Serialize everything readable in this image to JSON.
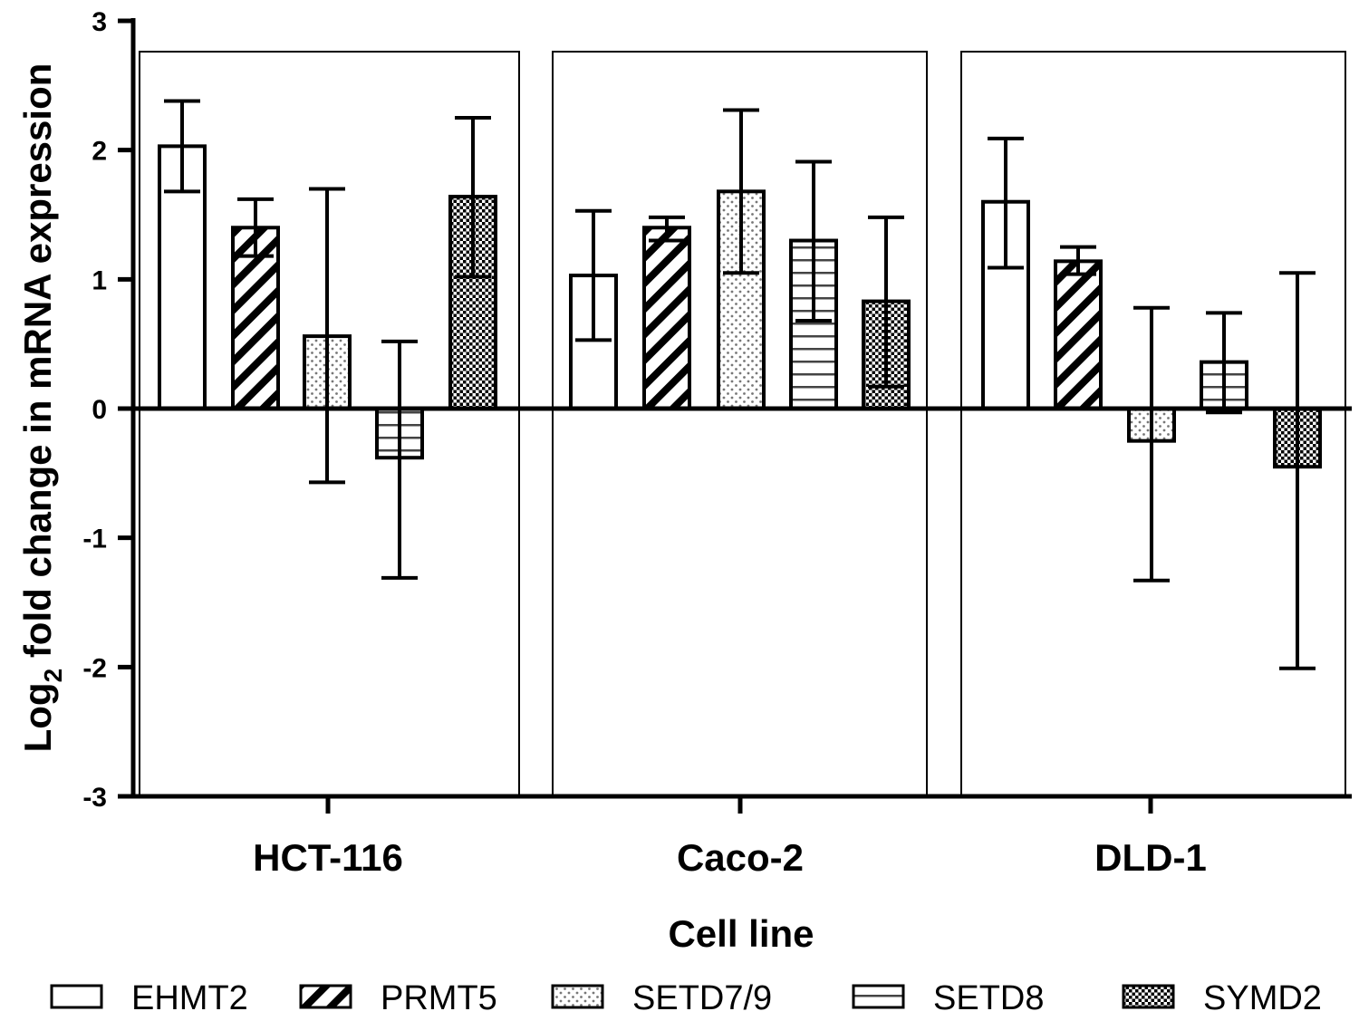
{
  "chart_data": {
    "type": "bar",
    "title": "",
    "xlabel": "Cell line",
    "ylabel_main": "Log",
    "ylabel_sub": "2",
    "ylabel_rest": " fold change in mRNA expression",
    "ylim": [
      -3,
      3
    ],
    "yticks": [
      "3",
      "2",
      "1",
      "0",
      "-1",
      "-2",
      "-3"
    ],
    "ytick_values": [
      3,
      2,
      1,
      0,
      -1,
      -2,
      -3
    ],
    "categories": [
      "HCT-116",
      "Caco-2",
      "DLD-1"
    ],
    "series": [
      {
        "name": "EHMT2",
        "pattern": "none",
        "values": [
          2.03,
          1.03,
          1.6
        ],
        "err_low": [
          1.68,
          0.53,
          1.09
        ],
        "err_high": [
          2.38,
          1.53,
          2.09
        ]
      },
      {
        "name": "PRMT5",
        "pattern": "diagonal",
        "values": [
          1.4,
          1.4,
          1.14
        ],
        "err_low": [
          1.18,
          1.3,
          1.04
        ],
        "err_high": [
          1.62,
          1.48,
          1.25
        ]
      },
      {
        "name": "SETD7/9",
        "pattern": "dots",
        "values": [
          0.56,
          1.68,
          -0.25
        ],
        "err_low": [
          -0.57,
          1.05,
          -1.33
        ],
        "err_high": [
          1.7,
          2.31,
          0.78
        ]
      },
      {
        "name": "SETD8",
        "pattern": "horizontal",
        "values": [
          -0.38,
          1.3,
          0.36
        ],
        "err_low": [
          -1.31,
          0.68,
          -0.03
        ],
        "err_high": [
          0.52,
          1.91,
          0.74
        ]
      },
      {
        "name": "SYMD2",
        "pattern": "crosshatch",
        "values": [
          1.64,
          0.83,
          -0.45
        ],
        "err_low": [
          1.02,
          0.17,
          -2.01
        ],
        "err_high": [
          2.25,
          1.48,
          1.05
        ]
      }
    ],
    "legend_position": "bottom",
    "grid": false
  }
}
